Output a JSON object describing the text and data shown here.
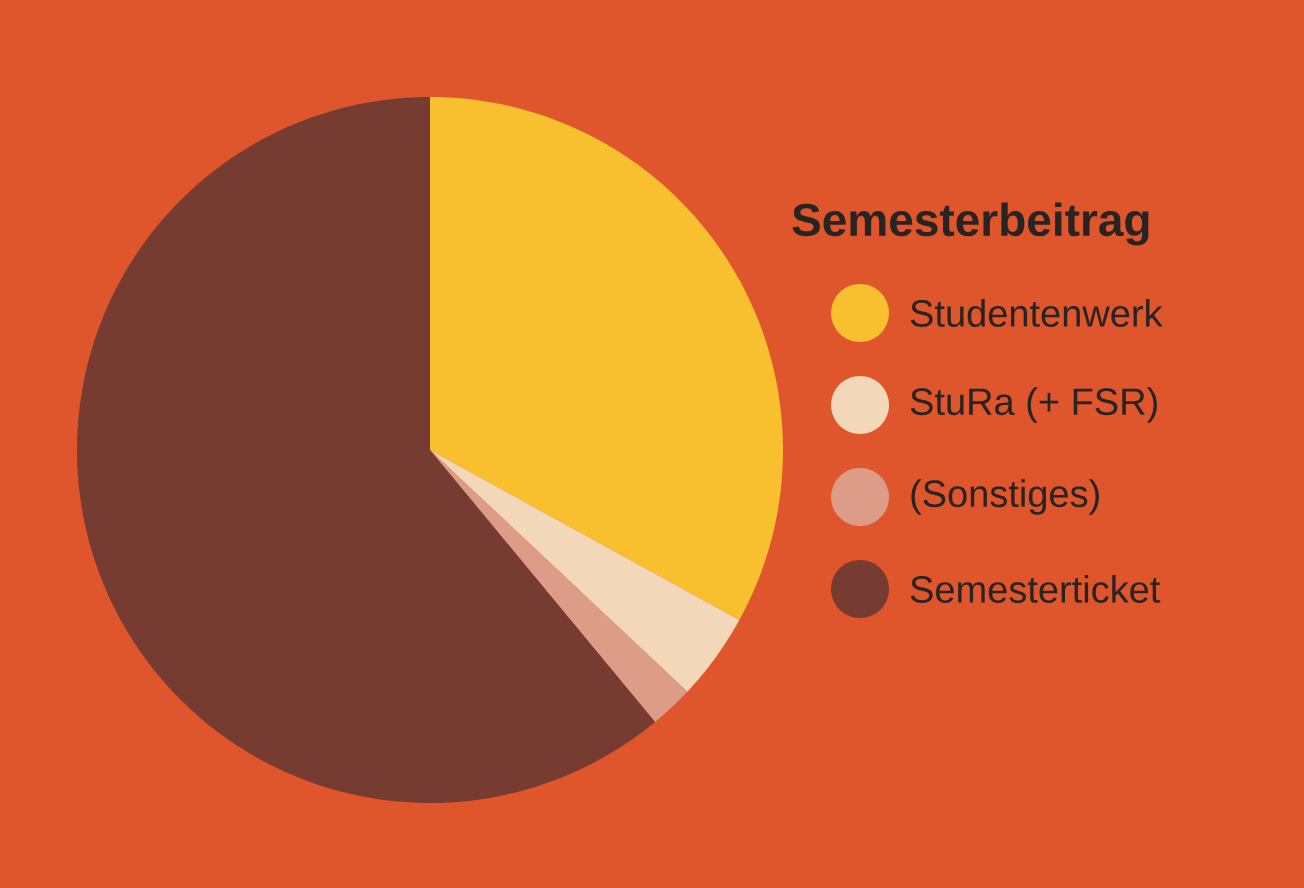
{
  "chart_data": {
    "type": "pie",
    "legend_title": "Semesterbeitrag",
    "legend": "right",
    "categories": [
      "Studentenwerk",
      "StuRa (+ FSR)",
      "(Sonstiges)",
      "Semesterticket"
    ],
    "values": [
      33,
      4,
      2,
      61
    ],
    "colors": [
      "#f8bf2f",
      "#f2d7b9",
      "#dd9c88",
      "#763b31"
    ]
  }
}
